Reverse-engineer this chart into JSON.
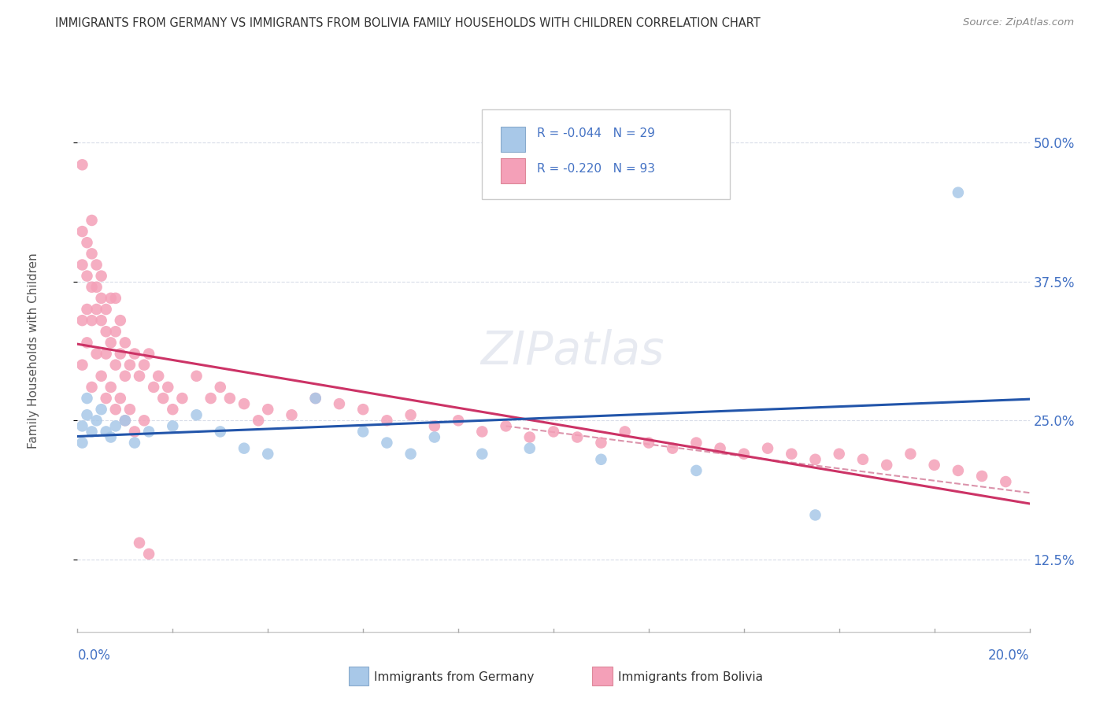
{
  "title": "IMMIGRANTS FROM GERMANY VS IMMIGRANTS FROM BOLIVIA FAMILY HOUSEHOLDS WITH CHILDREN CORRELATION CHART",
  "source": "Source: ZipAtlas.com",
  "ylabel": "Family Households with Children",
  "yticks": [
    0.125,
    0.25,
    0.375,
    0.5
  ],
  "ytick_labels": [
    "12.5%",
    "25.0%",
    "37.5%",
    "50.0%"
  ],
  "xlim": [
    0.0,
    0.2
  ],
  "ylim": [
    0.06,
    0.565
  ],
  "color_germany": "#a8c8e8",
  "color_bolivia": "#f4a0b8",
  "color_germany_line": "#2255aa",
  "color_bolivia_line": "#cc3366",
  "color_axis_text": "#4472c4",
  "color_title": "#333333",
  "color_source": "#888888",
  "color_ylabel": "#555555",
  "color_grid": "#d8dce8",
  "watermark": "ZIPatlas",
  "germany_x": [
    0.001,
    0.001,
    0.002,
    0.002,
    0.003,
    0.004,
    0.005,
    0.006,
    0.007,
    0.008,
    0.01,
    0.012,
    0.015,
    0.02,
    0.025,
    0.03,
    0.035,
    0.04,
    0.05,
    0.06,
    0.065,
    0.07,
    0.075,
    0.085,
    0.095,
    0.11,
    0.13,
    0.155,
    0.185
  ],
  "germany_y": [
    0.245,
    0.23,
    0.255,
    0.27,
    0.24,
    0.25,
    0.26,
    0.24,
    0.235,
    0.245,
    0.25,
    0.23,
    0.24,
    0.245,
    0.255,
    0.24,
    0.225,
    0.22,
    0.27,
    0.24,
    0.23,
    0.22,
    0.235,
    0.22,
    0.225,
    0.215,
    0.205,
    0.165,
    0.455
  ],
  "bolivia_x": [
    0.001,
    0.001,
    0.001,
    0.001,
    0.002,
    0.002,
    0.002,
    0.003,
    0.003,
    0.003,
    0.003,
    0.004,
    0.004,
    0.004,
    0.005,
    0.005,
    0.005,
    0.006,
    0.006,
    0.006,
    0.007,
    0.007,
    0.008,
    0.008,
    0.008,
    0.009,
    0.009,
    0.01,
    0.01,
    0.011,
    0.012,
    0.013,
    0.014,
    0.015,
    0.016,
    0.017,
    0.018,
    0.019,
    0.02,
    0.022,
    0.025,
    0.028,
    0.03,
    0.032,
    0.035,
    0.038,
    0.04,
    0.045,
    0.05,
    0.055,
    0.06,
    0.065,
    0.07,
    0.075,
    0.08,
    0.085,
    0.09,
    0.095,
    0.1,
    0.105,
    0.11,
    0.115,
    0.12,
    0.125,
    0.13,
    0.135,
    0.14,
    0.145,
    0.15,
    0.155,
    0.16,
    0.165,
    0.17,
    0.175,
    0.18,
    0.185,
    0.19,
    0.195,
    0.001,
    0.002,
    0.003,
    0.004,
    0.005,
    0.006,
    0.007,
    0.008,
    0.009,
    0.01,
    0.011,
    0.012,
    0.013,
    0.014,
    0.015
  ],
  "bolivia_y": [
    0.34,
    0.39,
    0.42,
    0.48,
    0.35,
    0.38,
    0.41,
    0.34,
    0.37,
    0.4,
    0.43,
    0.35,
    0.37,
    0.39,
    0.34,
    0.36,
    0.38,
    0.31,
    0.33,
    0.35,
    0.32,
    0.36,
    0.3,
    0.33,
    0.36,
    0.31,
    0.34,
    0.29,
    0.32,
    0.3,
    0.31,
    0.29,
    0.3,
    0.31,
    0.28,
    0.29,
    0.27,
    0.28,
    0.26,
    0.27,
    0.29,
    0.27,
    0.28,
    0.27,
    0.265,
    0.25,
    0.26,
    0.255,
    0.27,
    0.265,
    0.26,
    0.25,
    0.255,
    0.245,
    0.25,
    0.24,
    0.245,
    0.235,
    0.24,
    0.235,
    0.23,
    0.24,
    0.23,
    0.225,
    0.23,
    0.225,
    0.22,
    0.225,
    0.22,
    0.215,
    0.22,
    0.215,
    0.21,
    0.22,
    0.21,
    0.205,
    0.2,
    0.195,
    0.3,
    0.32,
    0.28,
    0.31,
    0.29,
    0.27,
    0.28,
    0.26,
    0.27,
    0.25,
    0.26,
    0.24,
    0.14,
    0.25,
    0.13
  ],
  "background_color": "#ffffff"
}
